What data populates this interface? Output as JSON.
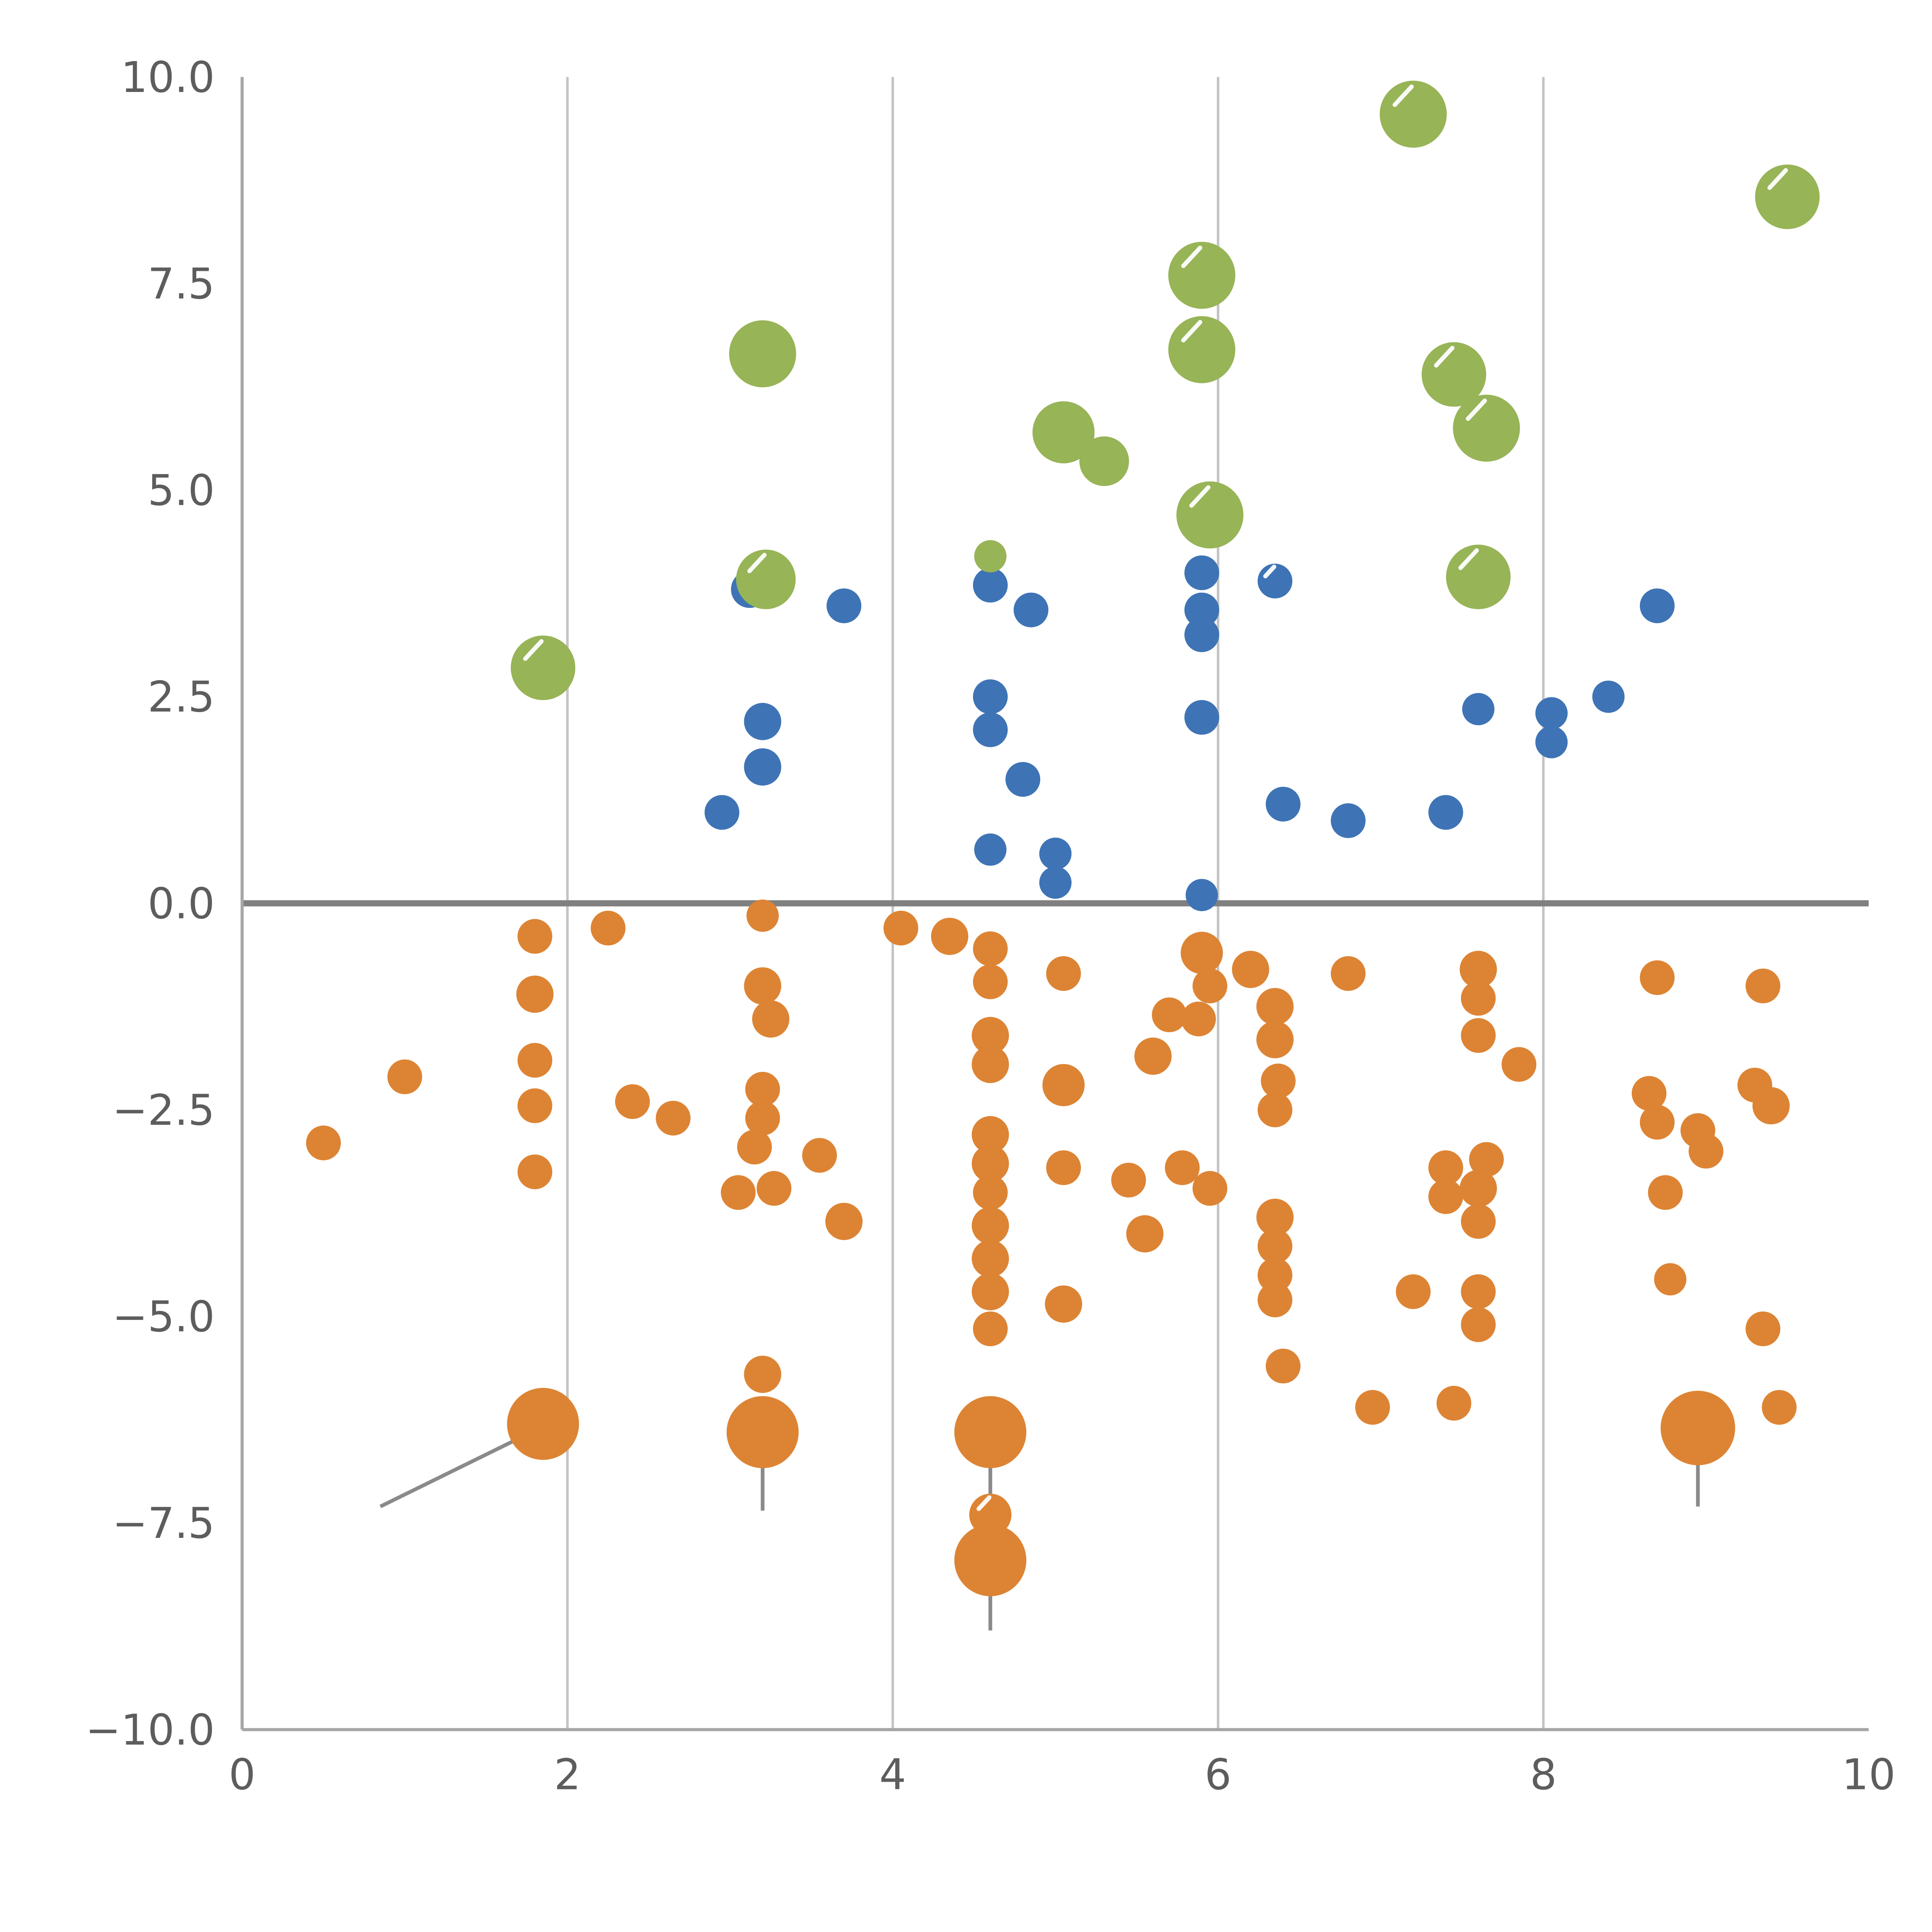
{
  "chart_data": {
    "type": "scatter",
    "title": "",
    "xlabel": "",
    "ylabel": "",
    "xlim": [
      0,
      10
    ],
    "ylim": [
      -10,
      10
    ],
    "grid": "vertical-gridlines-only",
    "legend": "none",
    "zero_line_y": 0,
    "x_ticks": {
      "values": [
        0,
        2,
        4,
        6,
        8,
        10
      ],
      "labels": [
        "0",
        "2",
        "4",
        "6",
        "8",
        "10"
      ]
    },
    "y_ticks": {
      "values": [
        -10,
        -7.5,
        -5,
        -2.5,
        0,
        2.5,
        5,
        7.5,
        10
      ],
      "labels": [
        "−10.0",
        "−7.5",
        "−5.0",
        "−2.5",
        "0.0",
        "2.5",
        "5.0",
        "7.5",
        "10.0"
      ]
    },
    "colors": {
      "green": "#97b457",
      "blue": "#3e74b5",
      "orange": "#dd8434",
      "gridline": "#c3c3c3",
      "zero_line": "#808080",
      "spine": "#a6a6a6",
      "stem": "#8a8a8a",
      "marker_highlight": "#ffffff"
    },
    "series": [
      {
        "name": "green-bubbles",
        "color": "#97b457",
        "points": [
          [
            7.2,
            9.55,
            27,
            1
          ],
          [
            9.5,
            8.55,
            26,
            1
          ],
          [
            5.9,
            7.6,
            27,
            1
          ],
          [
            5.9,
            6.7,
            27,
            1
          ],
          [
            3.2,
            6.65,
            27,
            0
          ],
          [
            7.45,
            6.4,
            26,
            1
          ],
          [
            7.65,
            5.75,
            27,
            1
          ],
          [
            5.05,
            5.7,
            25,
            0
          ],
          [
            5.3,
            5.35,
            20,
            0
          ],
          [
            5.95,
            4.7,
            27,
            1
          ],
          [
            7.6,
            3.95,
            26,
            1
          ],
          [
            3.22,
            3.92,
            24,
            1
          ],
          [
            4.6,
            4.2,
            13,
            0
          ],
          [
            1.85,
            2.85,
            26,
            1
          ]
        ]
      },
      {
        "name": "blue-dots",
        "color": "#3e74b5",
        "points": [
          [
            3.12,
            3.8,
            15,
            0
          ],
          [
            3.7,
            3.6,
            14,
            0
          ],
          [
            4.6,
            3.85,
            14,
            0
          ],
          [
            4.85,
            3.55,
            14,
            0
          ],
          [
            5.9,
            4.0,
            14,
            0
          ],
          [
            6.35,
            3.9,
            14,
            1
          ],
          [
            5.9,
            3.55,
            14,
            0
          ],
          [
            5.9,
            3.25,
            14,
            0
          ],
          [
            8.7,
            3.6,
            14,
            0
          ],
          [
            4.6,
            2.5,
            14,
            0
          ],
          [
            4.6,
            2.1,
            14,
            0
          ],
          [
            3.2,
            2.2,
            15,
            0
          ],
          [
            3.2,
            1.65,
            15,
            0
          ],
          [
            4.8,
            1.5,
            14,
            0
          ],
          [
            5.9,
            2.25,
            14,
            0
          ],
          [
            7.6,
            2.35,
            13,
            0
          ],
          [
            8.05,
            2.3,
            13,
            0
          ],
          [
            8.05,
            1.95,
            13,
            0
          ],
          [
            8.4,
            2.5,
            13,
            0
          ],
          [
            2.95,
            1.1,
            14,
            0
          ],
          [
            6.4,
            1.2,
            14,
            0
          ],
          [
            6.8,
            1.0,
            14,
            0
          ],
          [
            7.4,
            1.1,
            14,
            0
          ],
          [
            4.6,
            0.65,
            13,
            0
          ],
          [
            5.0,
            0.6,
            13,
            0
          ],
          [
            5.0,
            0.25,
            13,
            0
          ],
          [
            5.9,
            0.1,
            13,
            0
          ]
        ]
      },
      {
        "name": "orange-dots",
        "color": "#dd8434",
        "points": [
          [
            0.5,
            -2.9,
            14,
            0
          ],
          [
            1.0,
            -2.1,
            14,
            0
          ],
          [
            1.8,
            -0.4,
            14,
            0
          ],
          [
            1.8,
            -1.1,
            15,
            0
          ],
          [
            1.8,
            -1.9,
            14,
            0
          ],
          [
            1.8,
            -2.45,
            14,
            0
          ],
          [
            1.8,
            -3.25,
            14,
            0
          ],
          [
            1.85,
            -6.3,
            29,
            0
          ],
          [
            2.25,
            -0.3,
            14,
            0
          ],
          [
            2.4,
            -2.4,
            14,
            0
          ],
          [
            2.65,
            -2.6,
            14,
            0
          ],
          [
            3.2,
            -0.15,
            13,
            0
          ],
          [
            3.2,
            -1.0,
            15,
            0
          ],
          [
            3.25,
            -1.4,
            15,
            0
          ],
          [
            3.2,
            -2.25,
            14,
            0
          ],
          [
            3.2,
            -2.6,
            14,
            0
          ],
          [
            3.15,
            -2.95,
            14,
            0
          ],
          [
            3.05,
            -3.5,
            14,
            0
          ],
          [
            3.27,
            -3.45,
            14,
            0
          ],
          [
            3.2,
            -5.7,
            15,
            0
          ],
          [
            3.2,
            -6.4,
            29,
            0
          ],
          [
            3.55,
            -3.05,
            14,
            0
          ],
          [
            3.7,
            -3.85,
            15,
            0
          ],
          [
            4.05,
            -0.3,
            14,
            0
          ],
          [
            4.35,
            -0.4,
            15,
            0
          ],
          [
            4.6,
            -0.55,
            14,
            0
          ],
          [
            4.6,
            -0.95,
            14,
            0
          ],
          [
            4.6,
            -1.6,
            15,
            0
          ],
          [
            4.6,
            -1.95,
            15,
            0
          ],
          [
            4.6,
            -2.8,
            15,
            0
          ],
          [
            4.6,
            -3.15,
            15,
            0
          ],
          [
            4.6,
            -3.5,
            14,
            0
          ],
          [
            4.6,
            -3.9,
            15,
            0
          ],
          [
            4.6,
            -4.3,
            15,
            0
          ],
          [
            4.6,
            -4.7,
            15,
            0
          ],
          [
            4.6,
            -5.15,
            14,
            0
          ],
          [
            4.6,
            -6.4,
            29,
            0
          ],
          [
            4.6,
            -7.4,
            17,
            1
          ],
          [
            4.6,
            -7.95,
            29,
            0
          ],
          [
            5.05,
            -0.85,
            14,
            0
          ],
          [
            5.05,
            -2.2,
            17,
            0
          ],
          [
            5.05,
            -3.2,
            14,
            0
          ],
          [
            5.05,
            -4.85,
            15,
            0
          ],
          [
            5.45,
            -3.35,
            14,
            0
          ],
          [
            5.55,
            -4.0,
            15,
            0
          ],
          [
            5.6,
            -1.85,
            15,
            0
          ],
          [
            5.7,
            -1.35,
            14,
            0
          ],
          [
            5.78,
            -3.2,
            14,
            0
          ],
          [
            5.9,
            -0.6,
            17,
            0
          ],
          [
            5.95,
            -1.0,
            14,
            0
          ],
          [
            5.88,
            -1.4,
            14,
            0
          ],
          [
            5.95,
            -3.45,
            14,
            0
          ],
          [
            6.2,
            -0.8,
            15,
            0
          ],
          [
            6.35,
            -1.25,
            15,
            0
          ],
          [
            6.35,
            -1.65,
            15,
            0
          ],
          [
            6.37,
            -2.15,
            14,
            0
          ],
          [
            6.35,
            -2.5,
            14,
            0
          ],
          [
            6.35,
            -3.8,
            15,
            0
          ],
          [
            6.35,
            -4.15,
            14,
            0
          ],
          [
            6.35,
            -4.5,
            14,
            0
          ],
          [
            6.35,
            -4.8,
            14,
            0
          ],
          [
            6.4,
            -5.6,
            14,
            0
          ],
          [
            6.8,
            -0.85,
            14,
            0
          ],
          [
            6.95,
            -6.1,
            14,
            0
          ],
          [
            7.2,
            -4.7,
            14,
            0
          ],
          [
            7.4,
            -3.2,
            14,
            0
          ],
          [
            7.4,
            -3.55,
            14,
            0
          ],
          [
            7.45,
            -6.05,
            14,
            0
          ],
          [
            7.6,
            -0.8,
            15,
            0
          ],
          [
            7.6,
            -1.15,
            14,
            0
          ],
          [
            7.6,
            -1.6,
            14,
            0
          ],
          [
            7.65,
            -3.1,
            14,
            0
          ],
          [
            7.6,
            -3.45,
            15,
            0
          ],
          [
            7.6,
            -3.85,
            14,
            0
          ],
          [
            7.6,
            -4.7,
            14,
            0
          ],
          [
            7.6,
            -5.1,
            14,
            0
          ],
          [
            7.85,
            -1.95,
            14,
            0
          ],
          [
            8.7,
            -0.9,
            14,
            0
          ],
          [
            8.65,
            -2.3,
            14,
            0
          ],
          [
            8.7,
            -2.65,
            14,
            0
          ],
          [
            8.75,
            -3.5,
            14,
            0
          ],
          [
            8.78,
            -4.55,
            13,
            0
          ],
          [
            8.95,
            -2.75,
            14,
            0
          ],
          [
            9.0,
            -3.0,
            14,
            0
          ],
          [
            8.95,
            -6.35,
            30,
            0
          ],
          [
            9.35,
            -1.0,
            14,
            0
          ],
          [
            9.3,
            -2.2,
            14,
            0
          ],
          [
            9.4,
            -2.45,
            15,
            0
          ],
          [
            9.35,
            -5.15,
            14,
            0
          ],
          [
            9.45,
            -6.1,
            14,
            0
          ]
        ]
      }
    ],
    "stems": {
      "color": "#8a8a8a",
      "segments": [
        [
          0.85,
          -7.3,
          1.8,
          -6.38
        ],
        [
          3.2,
          -6.5,
          3.2,
          -7.35
        ],
        [
          4.6,
          -6.5,
          4.6,
          -8.8
        ],
        [
          8.95,
          -6.45,
          8.95,
          -7.3
        ]
      ]
    }
  }
}
